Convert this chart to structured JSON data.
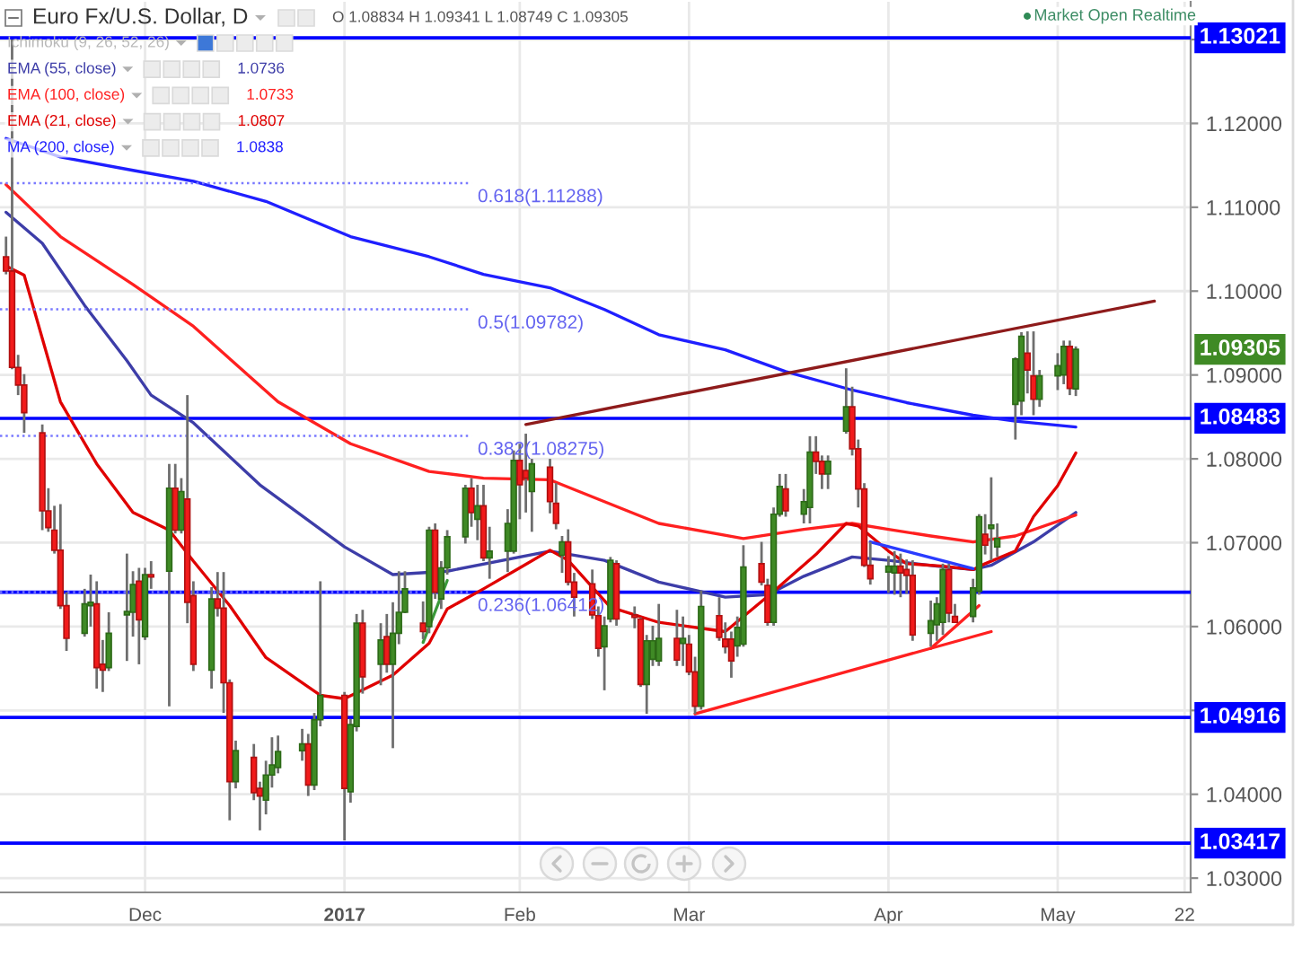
{
  "chart_data": {
    "type": "candlestick",
    "title": "Euro Fx/U.S. Dollar, D",
    "subtitle": "O 1.08834 H 1.09341 L 1.08749 C 1.09305",
    "annotations": [
      "Market Open Realtime",
      "Ichimoku (9, 26, 52, 26)",
      "1.0736",
      "1.0733",
      "1.0807",
      "1.0838",
      {
        "text": "0.618(1.11288)",
        "x": "2017-01-24",
        "y": 1.11288
      },
      {
        "text": "0.5(1.09782)",
        "x": "2017-01-24",
        "y": 1.09782
      },
      {
        "text": "0.382(1.08275)",
        "x": "2017-01-24",
        "y": 1.08275
      },
      {
        "text": "0.236(1.06412)",
        "x": "2017-01-24",
        "y": 1.06412
      }
    ],
    "xlim": [
      "2016-11-07",
      "2017-05-23"
    ],
    "xticks": [
      {
        "value": "2016-12-01",
        "label": "Dec"
      },
      {
        "value": "2017-01-03",
        "label": "2017"
      },
      {
        "value": "2017-02-01",
        "label": "Feb"
      },
      {
        "value": "2017-03-01",
        "label": "Mar"
      },
      {
        "value": "2017-04-03",
        "label": "Apr"
      },
      {
        "value": "2017-05-01",
        "label": "May"
      },
      {
        "value": "2017-05-22",
        "label": "22"
      }
    ],
    "ylim": [
      1.0283,
      1.1345
    ],
    "yticks": [
      {
        "value": 1.03,
        "label": "1.03000"
      },
      {
        "value": 1.04,
        "label": "1.04000"
      },
      {
        "value": 1.05,
        "label": null
      },
      {
        "value": 1.06,
        "label": "1.06000"
      },
      {
        "value": 1.07,
        "label": "1.07000"
      },
      {
        "value": 1.08,
        "label": "1.08000"
      },
      {
        "value": 1.09,
        "label": "1.09000"
      },
      {
        "value": 1.1,
        "label": "1.10000"
      },
      {
        "value": 1.11,
        "label": "1.11000"
      },
      {
        "value": 1.12,
        "label": "1.12000"
      },
      {
        "value": 1.13,
        "label": null
      }
    ],
    "grid": true,
    "legend": "top left",
    "ref_lines": [
      {
        "axis": "y",
        "value": 1.13021,
        "label": "1.13021",
        "color": "#0000ff"
      },
      {
        "axis": "y",
        "value": 1.08483,
        "label": "1.08483",
        "color": "#0000ff"
      },
      {
        "axis": "y",
        "value": 1.0641,
        "label": null,
        "color": "#0000ff"
      },
      {
        "axis": "y",
        "value": 1.04916,
        "label": "1.04916",
        "color": "#0000ff"
      },
      {
        "axis": "y",
        "value": 1.03417,
        "label": "1.03417",
        "color": "#0000ff"
      }
    ],
    "series": [
      {
        "x": [
          "2016-11-08",
          "2016-11-09",
          "2016-11-10",
          "2016-11-11",
          "2016-11-14",
          "2016-11-15",
          "2016-11-16",
          "2016-11-17",
          "2016-11-18",
          "2016-11-21",
          "2016-11-22",
          "2016-11-23",
          "2016-11-24",
          "2016-11-25",
          "2016-11-28",
          "2016-11-29",
          "2016-11-30",
          "2016-12-01",
          "2016-12-02",
          "2016-12-05",
          "2016-12-06",
          "2016-12-07",
          "2016-12-08",
          "2016-12-09",
          "2016-12-12",
          "2016-12-13",
          "2016-12-14",
          "2016-12-15",
          "2016-12-16",
          "2016-12-19",
          "2016-12-20",
          "2016-12-21",
          "2016-12-22",
          "2016-12-23",
          "2016-12-27",
          "2016-12-28",
          "2016-12-29",
          "2016-12-30",
          "2017-01-03",
          "2017-01-04",
          "2017-01-05",
          "2017-01-06",
          "2017-01-09",
          "2017-01-10",
          "2017-01-11",
          "2017-01-12",
          "2017-01-13",
          "2017-01-16",
          "2017-01-17",
          "2017-01-18",
          "2017-01-19",
          "2017-01-20",
          "2017-01-23",
          "2017-01-24",
          "2017-01-25",
          "2017-01-26",
          "2017-01-27",
          "2017-01-30",
          "2017-01-31",
          "2017-02-01",
          "2017-02-02",
          "2017-02-03",
          "2017-02-06",
          "2017-02-07",
          "2017-02-08",
          "2017-02-09",
          "2017-02-10",
          "2017-02-13",
          "2017-02-14",
          "2017-02-15",
          "2017-02-16",
          "2017-02-17",
          "2017-02-20",
          "2017-02-21",
          "2017-02-22",
          "2017-02-23",
          "2017-02-24",
          "2017-02-27",
          "2017-02-28",
          "2017-03-01",
          "2017-03-02",
          "2017-03-03",
          "2017-03-06",
          "2017-03-07",
          "2017-03-08",
          "2017-03-09",
          "2017-03-10",
          "2017-03-13",
          "2017-03-14",
          "2017-03-15",
          "2017-03-16",
          "2017-03-17",
          "2017-03-20",
          "2017-03-21",
          "2017-03-22",
          "2017-03-23",
          "2017-03-24",
          "2017-03-27",
          "2017-03-28",
          "2017-03-29",
          "2017-03-30",
          "2017-03-31",
          "2017-04-03",
          "2017-04-04",
          "2017-04-05",
          "2017-04-06",
          "2017-04-07",
          "2017-04-10",
          "2017-04-11",
          "2017-04-12",
          "2017-04-13",
          "2017-04-14",
          "2017-04-17",
          "2017-04-18",
          "2017-04-19",
          "2017-04-20",
          "2017-04-21",
          "2017-04-24",
          "2017-04-25",
          "2017-04-26",
          "2017-04-27",
          "2017-04-28",
          "2017-05-01",
          "2017-05-02",
          "2017-05-03",
          "2017-05-04"
        ],
        "ohlc": [
          [
            1.1041,
            1.1065,
            1.102,
            1.1024
          ],
          [
            1.1024,
            1.13,
            1.0907,
            1.0909
          ],
          [
            1.0909,
            1.0924,
            1.0876,
            1.0888
          ],
          [
            1.0888,
            1.0901,
            1.0831,
            1.0855
          ],
          [
            1.0831,
            1.0841,
            1.0715,
            1.0738
          ],
          [
            1.0738,
            1.0765,
            1.0713,
            1.0718
          ],
          [
            1.0715,
            1.0744,
            1.0687,
            1.0691
          ],
          [
            1.0691,
            1.0746,
            1.0621,
            1.0625
          ],
          [
            1.0625,
            1.0641,
            1.0571,
            1.0586
          ],
          [
            1.0592,
            1.0645,
            1.0588,
            1.0627
          ],
          [
            1.0625,
            1.0662,
            1.06,
            1.0629
          ],
          [
            1.0627,
            1.0654,
            1.0526,
            1.0551
          ],
          [
            1.0555,
            1.0584,
            1.0522,
            1.0548
          ],
          [
            1.0551,
            1.0617,
            1.0547,
            1.0592
          ],
          [
            1.0614,
            1.0687,
            1.0559,
            1.0618
          ],
          [
            1.0617,
            1.0666,
            1.0588,
            1.065
          ],
          [
            1.0654,
            1.067,
            1.0555,
            1.0608
          ],
          [
            1.0588,
            1.067,
            1.0584,
            1.0662
          ],
          [
            1.0662,
            1.0678,
            1.0645,
            1.0659
          ],
          [
            1.0666,
            1.0794,
            1.0505,
            1.0765
          ],
          [
            1.0765,
            1.0794,
            1.0711,
            1.0715
          ],
          [
            1.0715,
            1.0777,
            1.0711,
            1.0761
          ],
          [
            1.0752,
            1.0876,
            1.0604,
            1.0629
          ],
          [
            1.0637,
            1.0654,
            1.0547,
            1.0555
          ],
          [
            1.0548,
            1.0647,
            1.0526,
            1.0633
          ],
          [
            1.0633,
            1.0665,
            1.0612,
            1.0622
          ],
          [
            1.0622,
            1.0665,
            1.0497,
            1.0533
          ],
          [
            1.0533,
            1.0537,
            1.0369,
            1.0415
          ],
          [
            1.0415,
            1.0464,
            1.0407,
            1.0452
          ],
          [
            1.0444,
            1.046,
            1.0393,
            1.0402
          ],
          [
            1.0407,
            1.0415,
            1.0357,
            1.0398
          ],
          [
            1.0393,
            1.044,
            1.0376,
            1.0423
          ],
          [
            1.0423,
            1.0468,
            1.0408,
            1.0435
          ],
          [
            1.0432,
            1.047,
            1.0425,
            1.0451
          ],
          [
            1.0452,
            1.0478,
            1.044,
            1.046
          ],
          [
            1.046,
            1.0472,
            1.0398,
            1.0411
          ],
          [
            1.0411,
            1.0497,
            1.0405,
            1.0489
          ],
          [
            1.0489,
            1.0654,
            1.0481,
            1.0518
          ],
          [
            1.0518,
            1.0522,
            1.0345,
            1.0407
          ],
          [
            1.0403,
            1.049,
            1.039,
            1.0483
          ],
          [
            1.0481,
            1.0615,
            1.0475,
            1.0604
          ],
          [
            1.0604,
            1.062,
            1.052,
            1.054
          ],
          [
            1.0555,
            1.0604,
            1.053,
            1.0584
          ],
          [
            1.0588,
            1.0615,
            1.0545,
            1.0555
          ],
          [
            1.0555,
            1.0629,
            1.0455,
            1.0592
          ],
          [
            1.0592,
            1.0666,
            1.0579,
            1.0617
          ],
          [
            1.0617,
            1.0666,
            1.0616,
            1.0645
          ],
          [
            1.0604,
            1.063,
            1.0585,
            1.0594
          ],
          [
            1.06,
            1.0719,
            1.0592,
            1.0715
          ],
          [
            1.0715,
            1.0723,
            1.0633,
            1.0641
          ],
          [
            1.0633,
            1.0678,
            1.0621,
            1.067
          ],
          [
            1.067,
            1.0715,
            1.0662,
            1.0707
          ],
          [
            1.0707,
            1.0769,
            1.0699,
            1.0765
          ],
          [
            1.0765,
            1.0777,
            1.0719,
            1.0736
          ],
          [
            1.0728,
            1.0769,
            1.0703,
            1.0744
          ],
          [
            1.0744,
            1.0769,
            1.0678,
            1.0682
          ],
          [
            1.0682,
            1.0719,
            1.0657,
            1.069
          ],
          [
            1.069,
            1.074,
            1.0665,
            1.0723
          ],
          [
            1.069,
            1.081,
            1.0687,
            1.0798
          ],
          [
            1.0798,
            1.0818,
            1.0728,
            1.0769
          ],
          [
            1.0786,
            1.083,
            1.0736,
            1.0777
          ],
          [
            1.0761,
            1.08,
            1.0713,
            1.0794
          ],
          [
            1.079,
            1.08,
            1.0735,
            1.0749
          ],
          [
            1.0747,
            1.0771,
            1.0716,
            1.0723
          ],
          [
            1.0685,
            1.0708,
            1.0664,
            1.0701
          ],
          [
            1.0701,
            1.0716,
            1.0649,
            1.0653
          ],
          [
            1.0653,
            1.0664,
            1.0612,
            1.0635
          ],
          [
            1.0651,
            1.0668,
            1.0609,
            1.0614
          ],
          [
            1.0613,
            1.0624,
            1.0564,
            1.0574
          ],
          [
            1.0576,
            1.0612,
            1.0524,
            1.0601
          ],
          [
            1.0609,
            1.0683,
            1.0605,
            1.0679
          ],
          [
            1.0675,
            1.0679,
            1.0601,
            1.0609
          ],
          [
            1.0614,
            1.0624,
            1.0598,
            1.0611
          ],
          [
            1.0609,
            1.0611,
            1.0528,
            1.0531
          ],
          [
            1.0531,
            1.059,
            1.0496,
            1.0583
          ],
          [
            1.0561,
            1.0601,
            1.0553,
            1.0583
          ],
          [
            1.0559,
            1.0627,
            1.0553,
            1.0586
          ],
          [
            1.0586,
            1.062,
            1.0553,
            1.056
          ],
          [
            1.058,
            1.0612,
            1.0553,
            1.0586
          ],
          [
            1.0579,
            1.059,
            1.0542,
            1.0546
          ],
          [
            1.0546,
            1.0564,
            1.0496,
            1.0505
          ],
          [
            1.0505,
            1.0643,
            1.0501,
            1.0624
          ],
          [
            1.0613,
            1.0635,
            1.0583,
            1.0587
          ],
          [
            1.0585,
            1.0605,
            1.0568,
            1.0576
          ],
          [
            1.0585,
            1.0594,
            1.0539,
            1.0559
          ],
          [
            1.0577,
            1.0612,
            1.0564,
            1.0599
          ],
          [
            1.0579,
            1.0697,
            1.0576,
            1.0671
          ],
          [
            1.0675,
            1.0701,
            1.0649,
            1.0653
          ],
          [
            1.0649,
            1.0657,
            1.0601,
            1.0605
          ],
          [
            1.0605,
            1.0742,
            1.0601,
            1.0734
          ],
          [
            1.0734,
            1.0782,
            1.0731,
            1.0767
          ],
          [
            1.0764,
            1.0782,
            1.0731,
            1.0738
          ],
          [
            1.0734,
            1.0764,
            1.0723,
            1.0749
          ],
          [
            1.0742,
            1.0827,
            1.0723,
            1.0808
          ],
          [
            1.0808,
            1.0827,
            1.0782,
            1.0797
          ],
          [
            1.0797,
            1.0804,
            1.0764,
            1.0782
          ],
          [
            1.0782,
            1.0804,
            1.0764,
            1.0797
          ],
          [
            1.0833,
            1.0908,
            1.083,
            1.0862
          ],
          [
            1.0862,
            1.0886,
            1.0804,
            1.0812
          ],
          [
            1.0812,
            1.0823,
            1.0742,
            1.0764
          ],
          [
            1.0764,
            1.0771,
            1.0671,
            1.0673
          ],
          [
            1.0673,
            1.0701,
            1.065,
            1.0657
          ],
          [
            1.0665,
            1.0684,
            1.064,
            1.0672
          ],
          [
            1.0664,
            1.069,
            1.0638,
            1.0672
          ],
          [
            1.0672,
            1.0687,
            1.0635,
            1.0664
          ],
          [
            1.0668,
            1.068,
            1.0639,
            1.0661
          ],
          [
            1.0661,
            1.0679,
            1.0583,
            1.059
          ],
          [
            1.0592,
            1.0631,
            1.0576,
            1.0607
          ],
          [
            1.0602,
            1.0635,
            1.0583,
            1.0627
          ],
          [
            1.0605,
            1.0675,
            1.059,
            1.0668
          ],
          [
            1.0668,
            1.0675,
            1.0605,
            1.0616
          ],
          [
            1.0612,
            1.0627,
            1.0605,
            1.0605
          ],
          [
            1.0612,
            1.0657,
            1.0605,
            1.0646
          ],
          [
            1.0642,
            1.0734,
            1.0638,
            1.0731
          ],
          [
            1.071,
            1.0734,
            1.0686,
            1.0697
          ],
          [
            1.0717,
            1.0778,
            1.0679,
            1.0721
          ],
          [
            1.0695,
            1.0723,
            1.0683,
            1.0705
          ],
          [
            1.0865,
            1.0921,
            1.0823,
            1.0919
          ],
          [
            1.0869,
            1.0951,
            1.0852,
            1.0946
          ],
          [
            1.0926,
            1.0952,
            1.0878,
            1.0906
          ],
          [
            1.0899,
            1.0952,
            1.0852,
            1.0871
          ],
          [
            1.0871,
            1.0906,
            1.0862,
            1.0899
          ],
          [
            1.0899,
            1.0926,
            1.0882,
            1.0911
          ],
          [
            1.09,
            1.0941,
            1.0889,
            1.0934
          ],
          [
            1.0934,
            1.0941,
            1.0876,
            1.0884
          ],
          [
            1.08834,
            1.09341,
            1.08749,
            1.09305
          ]
        ],
        "value_labels": [
          null,
          null,
          null,
          null,
          null,
          null,
          null,
          null,
          null,
          null,
          null,
          null,
          null,
          null,
          null,
          null,
          null,
          null,
          null,
          null,
          null,
          null,
          null,
          null,
          null,
          null,
          null,
          null,
          null,
          null,
          null,
          null,
          null,
          null,
          null,
          null,
          null,
          null,
          null,
          null,
          null,
          null,
          null,
          null,
          null,
          null,
          null,
          null,
          null,
          null,
          null,
          null,
          null,
          null,
          null,
          null,
          null,
          null,
          null,
          null,
          null,
          null,
          null,
          null,
          null,
          null,
          null,
          null,
          null,
          null,
          null,
          null,
          null,
          null,
          null,
          null,
          null,
          null,
          null,
          null,
          null,
          null,
          null,
          null,
          null,
          null,
          null,
          null,
          null,
          null,
          null,
          null,
          null,
          null,
          null,
          null,
          null,
          null,
          null,
          null,
          null,
          null,
          null,
          null,
          null,
          null,
          null,
          null,
          null,
          null,
          null,
          null,
          null,
          null,
          null,
          null,
          null,
          null,
          null,
          null,
          null,
          null,
          null,
          null,
          null,
          "1.09305"
        ]
      },
      {
        "type": "line",
        "name": "EMA (55, close)",
        "color": "#3d3da8",
        "x": [
          "2016-11-08",
          "2016-11-14",
          "2016-11-21",
          "2016-11-28",
          "2016-12-02",
          "2016-12-09",
          "2016-12-20",
          "2017-01-03",
          "2017-01-11",
          "2017-01-20",
          "2017-02-06",
          "2017-02-15",
          "2017-02-24",
          "2017-03-07",
          "2017-03-14",
          "2017-03-20",
          "2017-03-28",
          "2017-04-03",
          "2017-04-11",
          "2017-04-17",
          "2017-04-20",
          "2017-04-27",
          "2017-05-04"
        ],
        "values": [
          1.1094,
          1.1057,
          1.0983,
          1.0917,
          1.0876,
          1.0843,
          1.0769,
          1.0695,
          1.0662,
          1.0666,
          1.069,
          1.0679,
          1.0653,
          1.0635,
          1.0638,
          1.066,
          1.0683,
          1.0679,
          1.0672,
          1.0668,
          1.0673,
          1.0701,
          1.0736
        ]
      },
      {
        "type": "line",
        "name": "EMA (100, close)",
        "color": "#ff2020",
        "x": [
          "2016-11-08",
          "2016-11-17",
          "2016-11-29",
          "2016-12-09",
          "2016-12-23",
          "2017-01-04",
          "2017-01-17",
          "2017-01-26",
          "2017-02-06",
          "2017-02-15",
          "2017-02-24",
          "2017-03-10",
          "2017-03-20",
          "2017-03-28",
          "2017-04-03",
          "2017-04-10",
          "2017-04-17",
          "2017-04-24",
          "2017-05-04"
        ],
        "values": [
          1.1127,
          1.1065,
          1.1008,
          1.0958,
          1.0868,
          1.0818,
          1.0785,
          1.0777,
          1.0775,
          1.0749,
          1.0723,
          1.0705,
          1.0716,
          1.0723,
          1.0716,
          1.0708,
          1.0701,
          1.0708,
          1.0733
        ]
      },
      {
        "type": "line",
        "name": "EMA (21, close)",
        "color": "#e00000",
        "x": [
          "2016-11-08",
          "2016-11-11",
          "2016-11-17",
          "2016-11-23",
          "2016-11-29",
          "2016-12-05",
          "2016-12-09",
          "2016-12-15",
          "2016-12-21",
          "2016-12-30",
          "2017-01-03",
          "2017-01-11",
          "2017-01-17",
          "2017-01-20",
          "2017-01-26",
          "2017-02-01",
          "2017-02-06",
          "2017-02-09",
          "2017-02-16",
          "2017-02-24",
          "2017-03-03",
          "2017-03-07",
          "2017-03-10",
          "2017-03-15",
          "2017-03-22",
          "2017-03-27",
          "2017-03-29",
          "2017-04-03",
          "2017-04-06",
          "2017-04-12",
          "2017-04-17",
          "2017-04-19",
          "2017-04-24",
          "2017-04-27",
          "2017-05-01",
          "2017-05-04"
        ],
        "values": [
          1.103,
          1.1019,
          1.0868,
          1.0794,
          1.0736,
          1.0715,
          1.0678,
          1.0625,
          1.0563,
          1.0518,
          1.0514,
          1.0542,
          1.058,
          1.0621,
          1.0645,
          1.067,
          1.0691,
          1.0679,
          1.0623,
          1.0605,
          1.0598,
          1.0594,
          1.0612,
          1.0642,
          1.0686,
          1.0723,
          1.072,
          1.069,
          1.0675,
          1.0672,
          1.0668,
          1.0675,
          1.069,
          1.0731,
          1.0768,
          1.0807
        ]
      },
      {
        "type": "line",
        "name": "MA (200, close)",
        "color": "#1f1fff",
        "x": [
          "2016-11-08",
          "2016-11-17",
          "2016-11-29",
          "2016-12-09",
          "2016-12-21",
          "2017-01-04",
          "2017-01-17",
          "2017-01-26",
          "2017-02-06",
          "2017-02-15",
          "2017-02-24",
          "2017-03-07",
          "2017-03-17",
          "2017-03-28",
          "2017-04-06",
          "2017-04-17",
          "2017-04-24",
          "2017-05-04"
        ],
        "values": [
          1.1182,
          1.116,
          1.1144,
          1.1131,
          1.1107,
          1.1065,
          1.1041,
          1.102,
          1.1004,
          1.0978,
          1.0948,
          1.093,
          1.0904,
          1.0882,
          1.0867,
          1.0852,
          1.0845,
          1.0838
        ]
      },
      {
        "type": "line",
        "color": "#7a7aff",
        "line_style": "dotted",
        "x": [
          "2016-11-07",
          "2017-01-24"
        ],
        "values": [
          1.11288,
          1.11288
        ]
      },
      {
        "type": "line",
        "color": "#7a7aff",
        "line_style": "dotted",
        "x": [
          "2016-11-07",
          "2017-01-24"
        ],
        "values": [
          1.09782,
          1.09782
        ]
      },
      {
        "type": "line",
        "color": "#7a7aff",
        "line_style": "dotted",
        "x": [
          "2016-11-07",
          "2017-01-24"
        ],
        "values": [
          1.08275,
          1.08275
        ]
      },
      {
        "type": "line",
        "color": "#7a7aff",
        "line_style": "dotted",
        "x": [
          "2016-11-07",
          "2017-01-24"
        ],
        "values": [
          1.06412,
          1.06412
        ]
      },
      {
        "type": "line",
        "color": "#8e1b1b",
        "x": [
          "2017-02-02",
          "2017-05-17"
        ],
        "values": [
          1.0841,
          1.0988
        ]
      },
      {
        "type": "line",
        "color": "#ff2020",
        "x": [
          "2017-03-02",
          "2017-04-20"
        ],
        "values": [
          1.0496,
          1.0594
        ]
      },
      {
        "type": "line",
        "color": "#ff2020",
        "x": [
          "2017-04-10",
          "2017-04-18"
        ],
        "values": [
          1.0574,
          1.0625
        ]
      },
      {
        "type": "line",
        "color": "#3a9a3a",
        "x": [
          "2017-01-16",
          "2017-01-20"
        ],
        "values": [
          1.0581,
          1.0655
        ]
      },
      {
        "type": "line",
        "color": "#2a3cff",
        "x": [
          "2017-03-31",
          "2017-04-17"
        ],
        "values": [
          1.0701,
          1.0669
        ]
      }
    ]
  }
}
